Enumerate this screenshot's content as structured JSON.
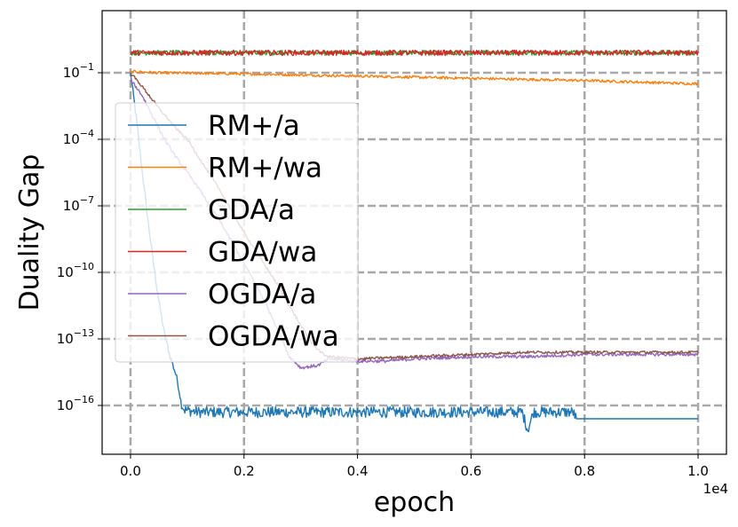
{
  "chart_data": {
    "type": "line",
    "title": "",
    "xlabel": "epoch",
    "ylabel": "Duality Gap",
    "x_offset_label": "1e4",
    "xlim": [
      -0.05,
      1.05
    ],
    "ylim_log10": [
      -18.2,
      1.8
    ],
    "yscale": "log",
    "grid": true,
    "legend_position": "center-left",
    "x_ticks": [
      {
        "value": 0.0,
        "label": "0.0"
      },
      {
        "value": 0.2,
        "label": "0.2"
      },
      {
        "value": 0.4,
        "label": "0.4"
      },
      {
        "value": 0.6,
        "label": "0.6"
      },
      {
        "value": 0.8,
        "label": "0.8"
      },
      {
        "value": 1.0,
        "label": "1.0"
      }
    ],
    "y_ticks": [
      {
        "log10": -1,
        "base": "10",
        "exp": "−1"
      },
      {
        "log10": -4,
        "base": "10",
        "exp": "−4"
      },
      {
        "log10": -7,
        "base": "10",
        "exp": "−7"
      },
      {
        "log10": -10,
        "base": "10",
        "exp": "−10"
      },
      {
        "log10": -13,
        "base": "10",
        "exp": "−13"
      },
      {
        "log10": -16,
        "base": "10",
        "exp": "−16"
      }
    ],
    "series": [
      {
        "name": "RM+/a",
        "color": "#1f77b4",
        "points": [
          [
            0.0,
            -1.0
          ],
          [
            0.01,
            -3.0
          ],
          [
            0.02,
            -5.3
          ],
          [
            0.03,
            -7.5
          ],
          [
            0.04,
            -9.5
          ],
          [
            0.05,
            -11.3
          ],
          [
            0.06,
            -12.8
          ],
          [
            0.07,
            -13.8
          ],
          [
            0.08,
            -14.6
          ],
          [
            0.085,
            -15.2
          ],
          [
            0.09,
            -16.0
          ],
          [
            0.095,
            -16.2
          ],
          [
            0.12,
            -16.3
          ],
          [
            0.2,
            -16.3
          ],
          [
            0.3,
            -16.3
          ],
          [
            0.4,
            -16.3
          ],
          [
            0.5,
            -16.3
          ],
          [
            0.6,
            -16.3
          ],
          [
            0.69,
            -16.3
          ],
          [
            0.7,
            -17.1
          ],
          [
            0.71,
            -16.3
          ],
          [
            0.78,
            -16.3
          ],
          [
            0.785,
            -16.6
          ],
          [
            0.9,
            -16.6
          ],
          [
            1.0,
            -16.6
          ]
        ],
        "noise_amp": 0.25
      },
      {
        "name": "RM+/wa",
        "color": "#ff7f0e",
        "points": [
          [
            0.0,
            -1.0
          ],
          [
            0.005,
            -0.95
          ],
          [
            0.05,
            -1.0
          ],
          [
            0.2,
            -1.05
          ],
          [
            0.4,
            -1.15
          ],
          [
            0.6,
            -1.25
          ],
          [
            0.8,
            -1.35
          ],
          [
            1.0,
            -1.5
          ]
        ],
        "noise_amp": 0.1
      },
      {
        "name": "GDA/a",
        "color": "#2ca02c",
        "points": [
          [
            0.0,
            -0.1
          ],
          [
            0.5,
            -0.1
          ],
          [
            1.0,
            -0.1
          ]
        ],
        "noise_amp": 0.18
      },
      {
        "name": "GDA/wa",
        "color": "#d62728",
        "points": [
          [
            0.0,
            -0.1
          ],
          [
            0.5,
            -0.1
          ],
          [
            1.0,
            -0.1
          ]
        ],
        "noise_amp": 0.2
      },
      {
        "name": "OGDA/a",
        "color": "#9467bd",
        "points": [
          [
            0.0,
            -1.3
          ],
          [
            0.02,
            -2.0
          ],
          [
            0.04,
            -3.0
          ],
          [
            0.06,
            -4.0
          ],
          [
            0.08,
            -4.8
          ],
          [
            0.1,
            -5.5
          ],
          [
            0.12,
            -6.2
          ],
          [
            0.14,
            -7.0
          ],
          [
            0.16,
            -7.8
          ],
          [
            0.18,
            -8.7
          ],
          [
            0.2,
            -9.6
          ],
          [
            0.22,
            -10.5
          ],
          [
            0.24,
            -11.5
          ],
          [
            0.26,
            -12.6
          ],
          [
            0.28,
            -13.8
          ],
          [
            0.3,
            -14.3
          ],
          [
            0.33,
            -14.2
          ],
          [
            0.35,
            -13.9
          ],
          [
            0.4,
            -14.0
          ],
          [
            0.45,
            -14.0
          ],
          [
            0.5,
            -13.9
          ],
          [
            0.6,
            -13.8
          ],
          [
            0.7,
            -13.8
          ],
          [
            0.8,
            -13.7
          ],
          [
            0.9,
            -13.7
          ],
          [
            1.0,
            -13.7
          ]
        ],
        "noise_amp": 0.12
      },
      {
        "name": "OGDA/wa",
        "color": "#8c564b",
        "points": [
          [
            0.0,
            -1.0
          ],
          [
            0.02,
            -1.6
          ],
          [
            0.05,
            -2.6
          ],
          [
            0.08,
            -3.5
          ],
          [
            0.1,
            -4.0
          ],
          [
            0.12,
            -4.8
          ],
          [
            0.14,
            -5.6
          ],
          [
            0.16,
            -6.4
          ],
          [
            0.18,
            -7.3
          ],
          [
            0.2,
            -8.2
          ],
          [
            0.22,
            -9.0
          ],
          [
            0.24,
            -9.8
          ],
          [
            0.26,
            -10.6
          ],
          [
            0.28,
            -11.5
          ],
          [
            0.3,
            -12.4
          ],
          [
            0.32,
            -13.2
          ],
          [
            0.34,
            -13.7
          ],
          [
            0.35,
            -13.8
          ],
          [
            0.4,
            -13.9
          ],
          [
            0.5,
            -13.8
          ],
          [
            0.6,
            -13.7
          ],
          [
            0.7,
            -13.6
          ],
          [
            0.8,
            -13.6
          ],
          [
            0.9,
            -13.6
          ],
          [
            1.0,
            -13.6
          ]
        ],
        "noise_amp": 0.1
      }
    ]
  }
}
